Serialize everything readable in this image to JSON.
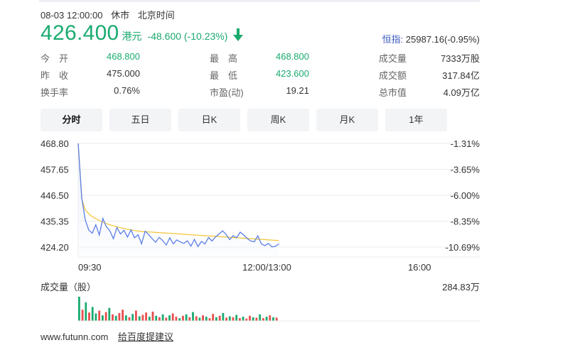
{
  "status": {
    "datetime": "08-03 12:00:00",
    "market_state": "休市",
    "timezone": "北京时间"
  },
  "quote": {
    "price": "426.400",
    "currency": "港元",
    "change": "-48.600 (-10.23%)",
    "direction": "down-arrow-icon"
  },
  "index": {
    "label": "恒指:",
    "value": "25987.16(-0.95%)"
  },
  "stats": {
    "open": {
      "label": "今　开",
      "value": "468.800"
    },
    "prev_close": {
      "label": "昨　收",
      "value": "475.000"
    },
    "turnover_rate": {
      "label": "换手率",
      "value": "0.76%"
    },
    "high": {
      "label": "最　高",
      "value": "468.800"
    },
    "low": {
      "label": "最　低",
      "value": "423.600"
    },
    "pe": {
      "label": "市盈(动)",
      "value": "19.21"
    },
    "volume": {
      "label": "成交量",
      "value": "7333万股"
    },
    "amount": {
      "label": "成交额",
      "value": "317.84亿"
    },
    "market_cap": {
      "label": "总市值",
      "value": "4.09万亿"
    }
  },
  "tabs": [
    {
      "label": "分时",
      "active": true
    },
    {
      "label": "五日",
      "active": false
    },
    {
      "label": "日K",
      "active": false
    },
    {
      "label": "周K",
      "active": false
    },
    {
      "label": "月K",
      "active": false
    },
    {
      "label": "1年",
      "active": false
    }
  ],
  "chart_data": {
    "type": "line",
    "y_ticks_left": [
      "468.80",
      "457.65",
      "446.50",
      "435.35",
      "424.20"
    ],
    "y_ticks_right": [
      "-1.31%",
      "-3.65%",
      "-6.00%",
      "-8.35%",
      "-10.69%"
    ],
    "x_ticks": [
      "09:30",
      "12:00/13:00",
      "16:00"
    ],
    "ylim": [
      424.2,
      468.8
    ],
    "session_fraction_elapsed": 0.5,
    "series": [
      {
        "color": "#5b7ee5",
        "values": [
          468.8,
          445.5,
          436.0,
          431.5,
          430.2,
          433.8,
          429.4,
          436.5,
          433.0,
          431.2,
          427.8,
          432.6,
          429.8,
          431.4,
          428.5,
          431.6,
          428.2,
          429.5,
          425.6,
          431.0,
          429.6,
          427.8,
          426.3,
          428.4,
          427.0,
          425.1,
          428.2,
          425.6,
          427.3,
          426.4,
          425.8,
          426.9,
          424.6,
          427.5,
          424.4,
          426.6,
          425.5,
          428.3,
          426.8,
          428.6,
          429.8,
          431.2,
          429.6,
          427.4,
          429.1,
          428.2,
          430.6,
          429.4,
          427.9,
          426.8,
          426.5,
          429.0,
          425.6,
          424.8,
          425.8,
          424.3,
          424.5,
          425.6
        ]
      },
      {
        "color": "#f2c230",
        "values": [
          468.8,
          445.0,
          440.2,
          438.5,
          437.3,
          436.4,
          435.6,
          434.9,
          434.3,
          433.8,
          433.3,
          432.9,
          432.5,
          432.2,
          431.9,
          431.6,
          431.3,
          431.1,
          430.9,
          430.8,
          430.7,
          430.6,
          430.5,
          430.4,
          430.3,
          430.2,
          430.1,
          430.0,
          429.9,
          429.8,
          429.7,
          429.6,
          429.5,
          429.4,
          429.3,
          429.2,
          429.1,
          429.0,
          428.9,
          428.8,
          428.7,
          428.6,
          428.5,
          428.4,
          428.3,
          428.2,
          428.1,
          428.0,
          427.9,
          427.8,
          427.7,
          427.6,
          427.5,
          427.4,
          427.3,
          427.2,
          427.1,
          427.0
        ]
      }
    ],
    "volume": {
      "label": "成交量（股）",
      "max_label": "284.83万",
      "max": 284.83,
      "values": [
        260,
        120,
        200,
        90,
        150,
        80,
        110,
        60,
        95,
        140,
        70,
        55,
        85,
        120,
        60,
        40,
        75,
        110,
        50,
        65,
        90,
        45,
        100,
        55,
        40,
        70,
        35,
        60,
        80,
        45,
        30,
        55,
        70,
        40,
        95,
        50,
        35,
        60,
        45,
        30,
        75,
        40,
        55,
        85,
        35,
        50,
        40,
        65,
        30,
        45,
        25,
        55,
        40,
        35,
        70,
        30,
        45,
        60,
        40,
        35
      ],
      "colors": [
        "#1aaa6f",
        "#e94d4d",
        "#1aaa6f",
        "#e94d4d",
        "#1aaa6f",
        "#1aaa6f",
        "#e94d4d",
        "#1aaa6f",
        "#e94d4d",
        "#1aaa6f",
        "#e94d4d",
        "#1aaa6f",
        "#e94d4d",
        "#e94d4d",
        "#1aaa6f",
        "#e94d4d",
        "#1aaa6f",
        "#e94d4d",
        "#1aaa6f",
        "#e94d4d",
        "#e94d4d",
        "#1aaa6f",
        "#e94d4d",
        "#1aaa6f",
        "#e94d4d",
        "#1aaa6f",
        "#e94d4d",
        "#1aaa6f",
        "#e94d4d",
        "#e94d4d",
        "#1aaa6f",
        "#e94d4d",
        "#1aaa6f",
        "#e94d4d",
        "#1aaa6f",
        "#e94d4d",
        "#1aaa6f",
        "#e94d4d",
        "#1aaa6f",
        "#e94d4d",
        "#e94d4d",
        "#1aaa6f",
        "#e94d4d",
        "#1aaa6f",
        "#e94d4d",
        "#1aaa6f",
        "#e94d4d",
        "#1aaa6f",
        "#e94d4d",
        "#1aaa6f",
        "#e94d4d",
        "#e94d4d",
        "#1aaa6f",
        "#e94d4d",
        "#1aaa6f",
        "#e94d4d",
        "#1aaa6f",
        "#e94d4d",
        "#1aaa6f",
        "#e94d4d"
      ]
    }
  },
  "footer": {
    "site": "www.futunn.com",
    "feedback_link": "给百度提建议"
  }
}
